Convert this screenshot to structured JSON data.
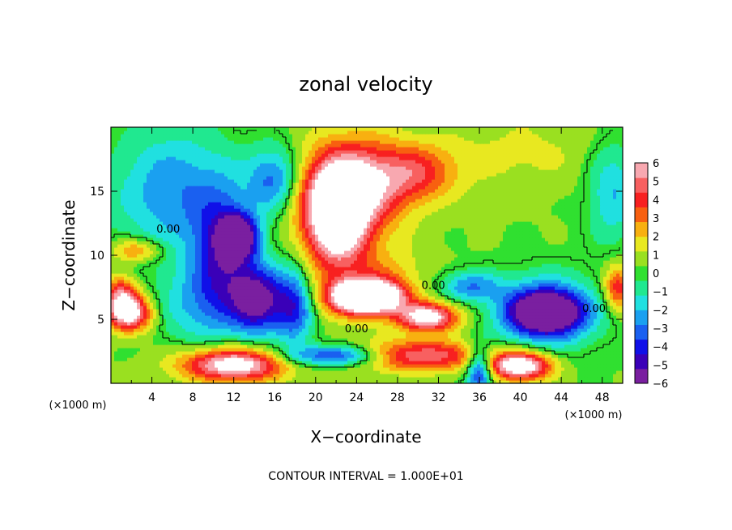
{
  "chart_data": {
    "type": "heatmap",
    "title": "zonal velocity",
    "xlabel": "X−coordinate",
    "ylabel": "Z−coordinate",
    "x_unit_label": "(×1000 m)",
    "z_unit_label": "(×1000 m)",
    "xlim": [
      0,
      50
    ],
    "ylim": [
      0,
      20
    ],
    "x_ticks": [
      4,
      8,
      12,
      16,
      20,
      24,
      28,
      32,
      36,
      40,
      44,
      48
    ],
    "y_ticks": [
      5,
      10,
      15
    ],
    "colorbar": {
      "min": -6,
      "max": 6,
      "tick_labels": [
        "6",
        "5",
        "4",
        "3",
        "2",
        "1",
        "0",
        "−1",
        "−2",
        "−3",
        "−4",
        "−5",
        "−6"
      ],
      "colors": [
        "#7a1fa0",
        "#3a00b8",
        "#1010e8",
        "#1a60f0",
        "#1aa0f0",
        "#20e0e0",
        "#20e890",
        "#30e030",
        "#9ae020",
        "#e8e820",
        "#f8b010",
        "#f86010",
        "#f82020",
        "#f86060",
        "#f8a8b0"
      ]
    },
    "contour_labels": [
      {
        "text": "0.00",
        "x": 5.6,
        "y": 12.0
      },
      {
        "text": "0.00",
        "x": 24.0,
        "y": 4.2
      },
      {
        "text": "0.00",
        "x": 31.5,
        "y": 7.6
      },
      {
        "text": "0.00",
        "x": 47.2,
        "y": 5.8
      }
    ],
    "contour_interval": "CONTOUR INTERVAL = 1.000E+01",
    "field_features": [
      {
        "v": 7.5,
        "x": 22,
        "y": 12.8,
        "rx": 3.2,
        "ry": 4.0
      },
      {
        "v": 6.0,
        "x": 25,
        "y": 6.8,
        "rx": 4.0,
        "ry": 1.6
      },
      {
        "v": 7.5,
        "x": 25,
        "y": 6.8,
        "rx": 2.8,
        "ry": 1.0
      },
      {
        "v": 6.5,
        "x": 31,
        "y": 5.2,
        "rx": 3.0,
        "ry": 1.1
      },
      {
        "v": 5.0,
        "x": 30,
        "y": 2.2,
        "rx": 6.0,
        "ry": 1.2
      },
      {
        "v": 7.0,
        "x": 12,
        "y": 1.5,
        "rx": 5.0,
        "ry": 1.3
      },
      {
        "v": 7.5,
        "x": 40,
        "y": 1.4,
        "rx": 3.0,
        "ry": 1.1
      },
      {
        "v": 6.5,
        "x": 1.8,
        "y": 5.5,
        "rx": 2.2,
        "ry": 1.4
      },
      {
        "v": 4.0,
        "x": 1.0,
        "y": 7.0,
        "rx": 1.6,
        "ry": 1.5
      },
      {
        "v": 3.0,
        "x": 2.5,
        "y": 10.4,
        "rx": 2.5,
        "ry": 0.9
      },
      {
        "v": 5.5,
        "x": 24,
        "y": 15.5,
        "rx": 5.0,
        "ry": 3.5
      },
      {
        "v": 3.0,
        "x": 30,
        "y": 16.5,
        "rx": 4.0,
        "ry": 2.2
      },
      {
        "v": 4.0,
        "x": 49.5,
        "y": 7.5,
        "rx": 1.3,
        "ry": 1.8
      },
      {
        "v": 1.0,
        "x": 40,
        "y": 18,
        "rx": 8.0,
        "ry": 3.0
      },
      {
        "v": 1.2,
        "x": 27,
        "y": 9,
        "rx": 4.0,
        "ry": 2.0
      },
      {
        "v": -6.0,
        "x": 12.5,
        "y": 11.5,
        "rx": 1.8,
        "ry": 1.6
      },
      {
        "v": -6.0,
        "x": 14.5,
        "y": 6.5,
        "rx": 2.6,
        "ry": 2.6
      },
      {
        "v": -4.5,
        "x": 11,
        "y": 10.0,
        "rx": 3.0,
        "ry": 5.0
      },
      {
        "v": -4.0,
        "x": 18,
        "y": 6.0,
        "rx": 1.8,
        "ry": 3.0
      },
      {
        "v": -3.0,
        "x": 6,
        "y": 15,
        "rx": 6.0,
        "ry": 5.0
      },
      {
        "v": -3.5,
        "x": 16,
        "y": 16,
        "rx": 2.5,
        "ry": 2.5
      },
      {
        "v": -2.0,
        "x": 8,
        "y": 6,
        "rx": 4.0,
        "ry": 3.0
      },
      {
        "v": -4.5,
        "x": 22,
        "y": 2.2,
        "rx": 5.0,
        "ry": 0.8
      },
      {
        "v": -3.0,
        "x": 35,
        "y": 7.6,
        "rx": 3.0,
        "ry": 1.2
      },
      {
        "v": -6.0,
        "x": 42.5,
        "y": 5.6,
        "rx": 3.5,
        "ry": 1.6
      },
      {
        "v": -4.0,
        "x": 42.5,
        "y": 5.6,
        "rx": 5.0,
        "ry": 2.8
      },
      {
        "v": -2.5,
        "x": 49,
        "y": 15,
        "rx": 2.5,
        "ry": 4.0
      },
      {
        "v": -5.0,
        "x": 36,
        "y": 1.0,
        "rx": 1.2,
        "ry": 1.8
      }
    ]
  }
}
